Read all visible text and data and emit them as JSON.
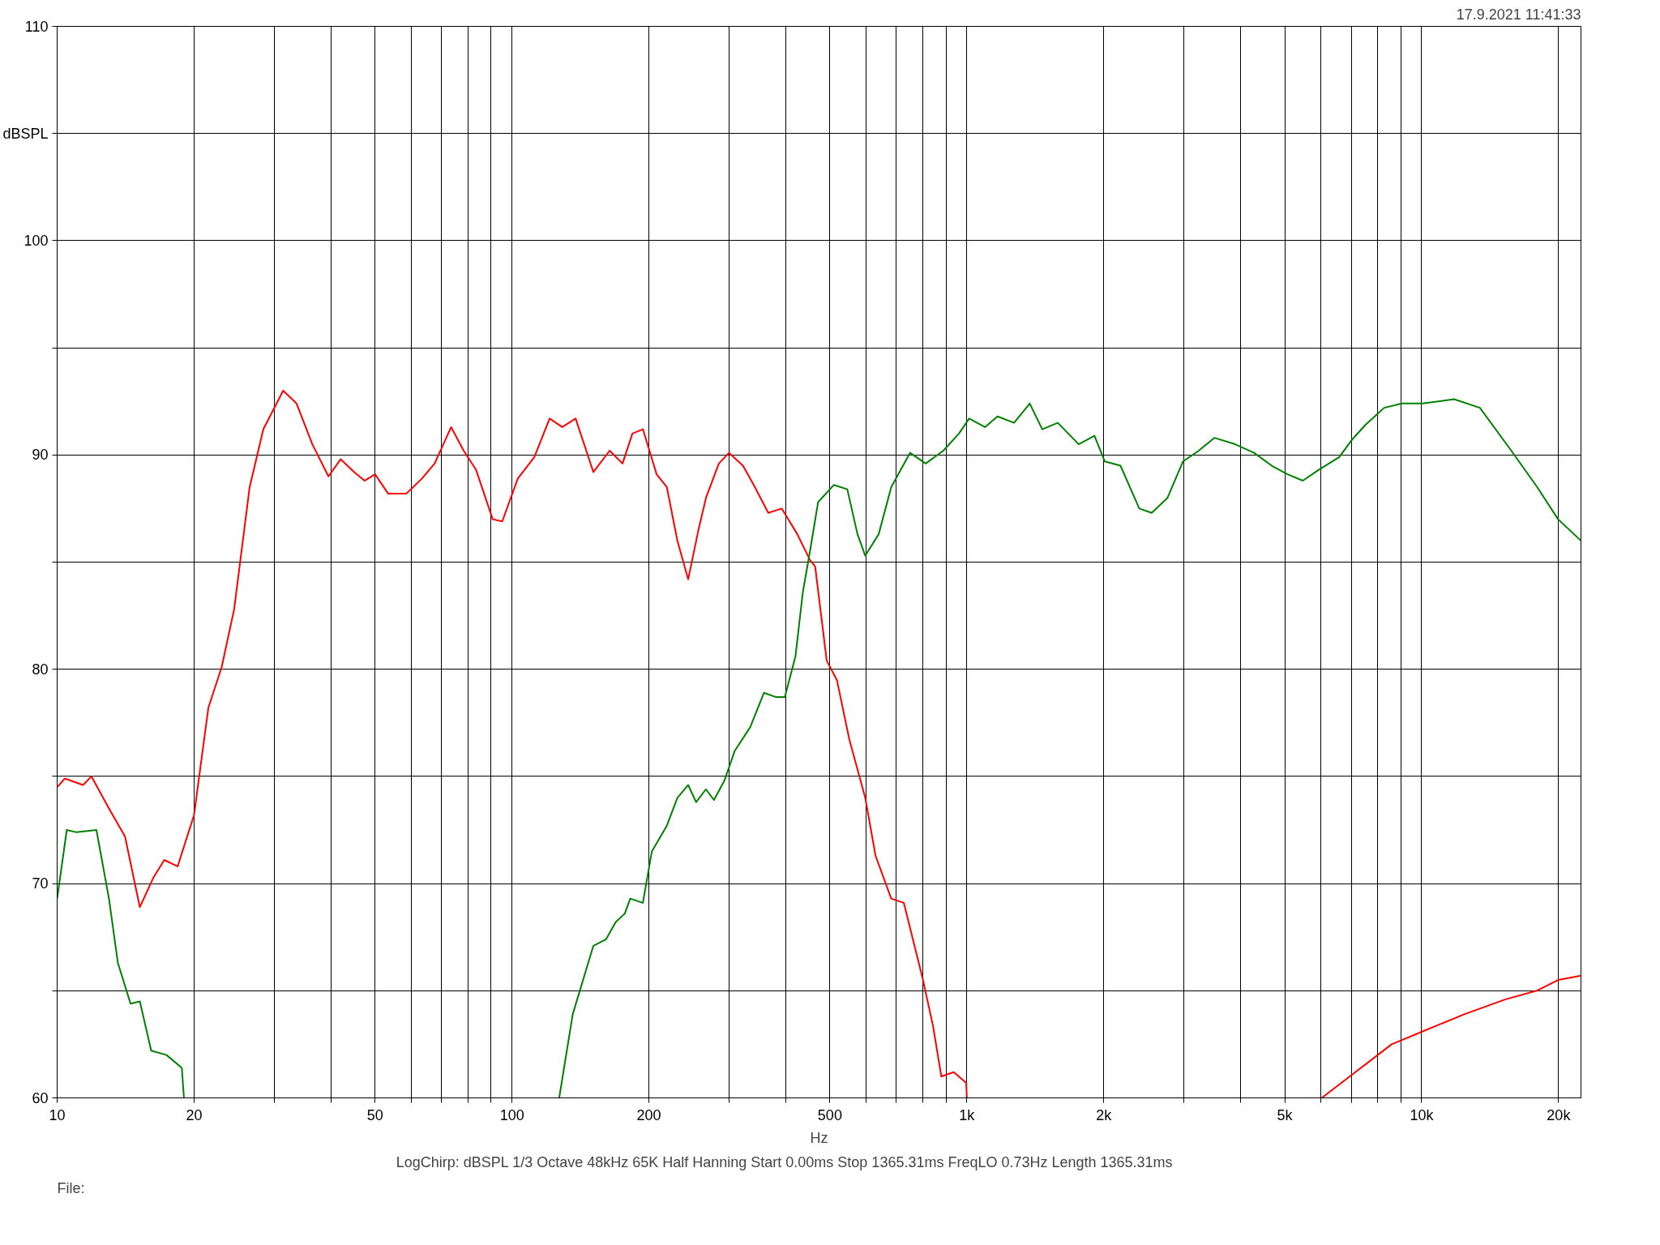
{
  "chart_data": {
    "type": "line",
    "xlabel": "Hz",
    "log": "x",
    "grid": true,
    "marker": "none",
    "line_style": "solid",
    "xlim": [
      10,
      22400
    ],
    "ylim": [
      60,
      110
    ],
    "xticks": [
      10,
      20,
      {
        "value": 30,
        "label": null
      },
      {
        "value": 40,
        "label": null
      },
      50,
      {
        "value": 60,
        "label": null
      },
      {
        "value": 70,
        "label": null
      },
      {
        "value": 80,
        "label": null
      },
      {
        "value": 90,
        "label": null
      },
      100,
      200,
      {
        "value": 300,
        "label": null
      },
      {
        "value": 400,
        "label": null
      },
      500,
      {
        "value": 600,
        "label": null
      },
      {
        "value": 700,
        "label": null
      },
      {
        "value": 800,
        "label": null
      },
      {
        "value": 900,
        "label": null
      },
      {
        "value": 1000,
        "label": "1k"
      },
      {
        "value": 2000,
        "label": "2k"
      },
      {
        "value": 3000,
        "label": null
      },
      {
        "value": 4000,
        "label": null
      },
      {
        "value": 5000,
        "label": "5k"
      },
      {
        "value": 6000,
        "label": null
      },
      {
        "value": 7000,
        "label": null
      },
      {
        "value": 8000,
        "label": null
      },
      {
        "value": 9000,
        "label": null
      },
      {
        "value": 10000,
        "label": "10k"
      },
      {
        "value": 20000,
        "label": "20k"
      }
    ],
    "yticks": [
      60,
      {
        "value": 65,
        "label": null
      },
      70,
      {
        "value": 75,
        "label": null
      },
      80,
      {
        "value": 85,
        "label": null
      },
      90,
      {
        "value": 95,
        "label": null
      },
      100,
      {
        "value": 105,
        "label": "dBSPL"
      },
      110
    ],
    "annotations": [
      "17.9.2021 11:41:33",
      "LogChirp:  dBSPL   1/3 Octave   48kHz   65K   Half Hanning   Start 0.00ms   Stop 1365.31ms   FreqLO 0.73Hz   Length 1365.31ms",
      "File:"
    ],
    "series": [
      {
        "color": "#ff0000",
        "x": [
          10,
          10.4,
          11.4,
          11.9,
          13.0,
          14.1,
          15.2,
          16.3,
          17.2,
          18.4,
          20,
          21.5,
          23.0,
          24.5,
          26.5,
          28.4,
          31.4,
          33.6,
          36.4,
          39.5,
          42.0,
          45.0,
          47.4,
          50,
          53.4,
          58.6,
          63.4,
          67.6,
          73.5,
          78.3,
          83.4,
          90.7,
          95.2,
          103,
          112,
          121,
          129,
          138,
          151,
          164,
          175,
          184,
          194,
          208,
          219,
          231,
          244,
          257,
          267,
          285,
          300,
          322,
          340,
          366,
          392,
          424,
          452,
          464,
          492,
          518,
          552,
          598,
          630,
          682,
          727,
          799,
          842,
          879,
          936,
          997,
          1000,
          3000,
          6030,
          6950,
          8590,
          10050,
          12400,
          15300,
          17900,
          19950,
          22400
        ],
        "values": [
          74.5,
          74.9,
          74.6,
          75.0,
          73.5,
          72.2,
          68.9,
          70.3,
          71.1,
          70.8,
          73.2,
          78.2,
          80.1,
          82.8,
          88.5,
          91.2,
          93.0,
          92.4,
          90.5,
          89.0,
          89.8,
          89.2,
          88.8,
          89.1,
          88.2,
          88.2,
          88.9,
          89.6,
          91.3,
          90.2,
          89.3,
          87.0,
          86.9,
          88.9,
          89.9,
          91.7,
          91.3,
          91.7,
          89.2,
          90.2,
          89.6,
          91.0,
          91.2,
          89.1,
          88.5,
          86.0,
          84.2,
          86.5,
          88.0,
          89.6,
          90.1,
          89.5,
          88.6,
          87.3,
          87.5,
          86.3,
          85.1,
          84.8,
          80.4,
          79.5,
          76.7,
          74.0,
          71.3,
          69.3,
          69.1,
          65.6,
          63.4,
          61.0,
          61.2,
          60.7,
          60.0,
          null,
          60.0,
          61.0,
          62.5,
          63.1,
          63.9,
          64.6,
          65.0,
          65.5,
          65.7
        ]
      },
      {
        "color": "#008000",
        "x": [
          10,
          10.5,
          11.0,
          12.2,
          13.0,
          13.6,
          14.5,
          15.2,
          16.1,
          17.4,
          18.8,
          19.0,
          50,
          127,
          136,
          151,
          161,
          169,
          177,
          182,
          194,
          203,
          219,
          231,
          244,
          254,
          267,
          278,
          293,
          309,
          334,
          358,
          381,
          398,
          420,
          436,
          452,
          471,
          510,
          546,
          575,
          598,
          640,
          682,
          750,
          812,
          888,
          961,
          1012,
          1096,
          1168,
          1270,
          1375,
          1465,
          1585,
          1762,
          1908,
          2010,
          2177,
          2394,
          2550,
          2762,
          2988,
          3235,
          3500,
          3890,
          4280,
          4680,
          5070,
          5480,
          5930,
          6590,
          7020,
          7520,
          8270,
          9050,
          10050,
          11780,
          13430,
          15740,
          17950,
          19950,
          22400
        ],
        "values": [
          69.3,
          72.5,
          72.4,
          72.5,
          69.3,
          66.3,
          64.4,
          64.5,
          62.2,
          62.0,
          61.4,
          60.0,
          null,
          60.0,
          63.9,
          67.1,
          67.4,
          68.2,
          68.6,
          69.3,
          69.1,
          71.5,
          72.7,
          74.0,
          74.6,
          73.8,
          74.4,
          73.9,
          74.8,
          76.2,
          77.3,
          78.9,
          78.7,
          78.7,
          80.6,
          83.6,
          85.5,
          87.8,
          88.6,
          88.4,
          86.3,
          85.3,
          86.3,
          88.5,
          90.1,
          89.6,
          90.2,
          91.0,
          91.7,
          91.3,
          91.8,
          91.5,
          92.4,
          91.2,
          91.5,
          90.5,
          90.9,
          89.7,
          89.5,
          87.5,
          87.3,
          88.0,
          89.7,
          90.2,
          90.8,
          90.5,
          90.1,
          89.5,
          89.1,
          88.8,
          89.3,
          89.9,
          90.7,
          91.4,
          92.2,
          92.4,
          92.4,
          92.6,
          92.2,
          90.2,
          88.5,
          87.0,
          86.0
        ]
      }
    ]
  }
}
